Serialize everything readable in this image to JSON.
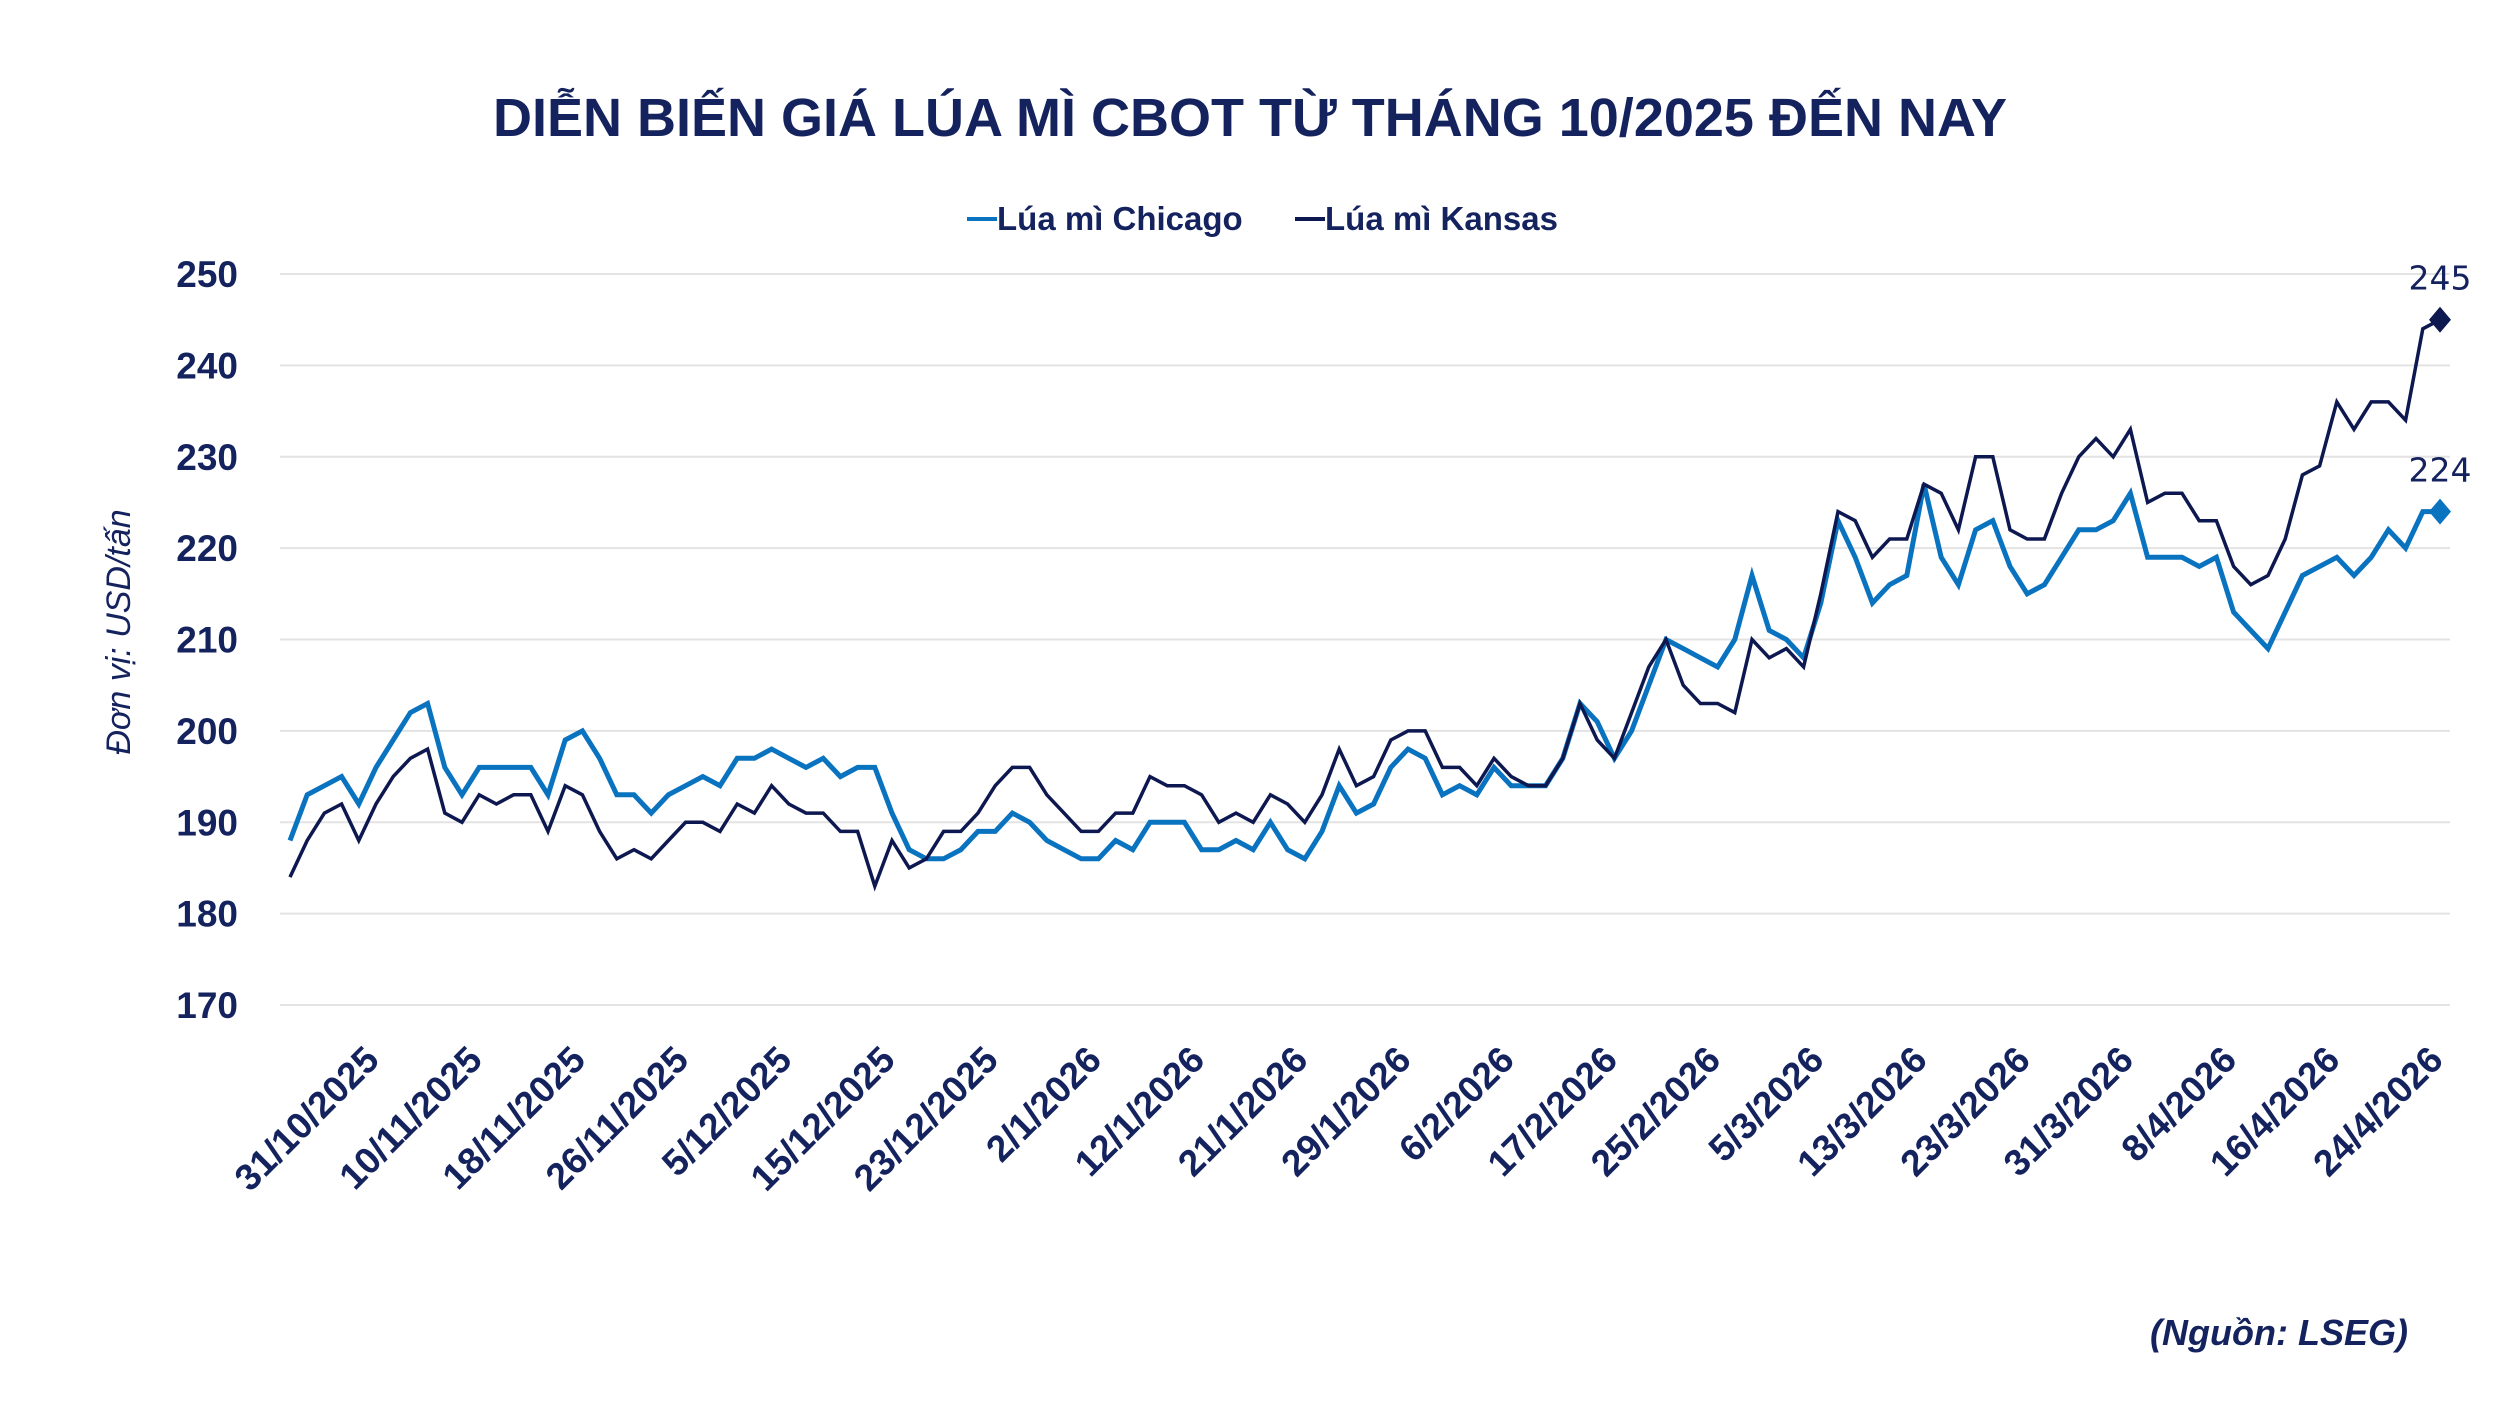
{
  "chart_data": {
    "type": "line",
    "title": "DIỄN BIẾN GIÁ LÚA MÌ CBOT TỪ THÁNG 10/2025 ĐẾN NAY",
    "ylabel": "Đơn vị: USD/tấn",
    "xlabel": "",
    "ylim": [
      170,
      250
    ],
    "yticks": [
      170,
      180,
      190,
      200,
      210,
      220,
      230,
      240,
      250
    ],
    "grid": true,
    "legend_position": "top",
    "xtick_labels": [
      "31/10/2025",
      "10/11/2025",
      "18/11/2025",
      "26/11/2025",
      "5/12/2025",
      "15/12/2025",
      "23/12/2025",
      "2/1/2026",
      "12/1/2026",
      "21/1/2026",
      "29/1/2026",
      "6/2/2026",
      "17/2/2026",
      "25/2/2026",
      "5/3/2026",
      "13/3/2026",
      "23/3/2026",
      "31/3/2026",
      "8/4/2026",
      "16/4/2026",
      "24/4/2026"
    ],
    "series": [
      {
        "name": "Lúa mì Chicago",
        "color": "#0a73c0",
        "last_label": "224",
        "values": [
          188,
          193,
          194,
          195,
          192,
          196,
          199,
          202,
          203,
          196,
          193,
          196,
          196,
          196,
          196,
          193,
          199,
          200,
          197,
          193,
          193,
          191,
          193,
          194,
          195,
          194,
          197,
          197,
          198,
          197,
          196,
          197,
          195,
          196,
          196,
          191,
          187,
          186,
          186,
          187,
          189,
          189,
          191,
          190,
          188,
          187,
          186,
          186,
          188,
          187,
          190,
          190,
          190,
          187,
          187,
          188,
          187,
          190,
          187,
          186,
          189,
          194,
          191,
          192,
          196,
          198,
          197,
          193,
          194,
          193,
          196,
          194,
          194,
          194,
          197,
          203,
          201,
          197,
          200,
          205,
          210,
          209,
          208,
          207,
          210,
          217,
          211,
          210,
          208,
          214,
          223,
          219,
          214,
          216,
          217,
          227,
          219,
          216,
          222,
          223,
          218,
          215,
          216,
          219,
          222,
          222,
          223,
          226,
          219,
          219,
          219,
          218,
          219,
          213,
          211,
          209,
          213,
          217,
          218,
          219,
          217,
          219,
          222,
          220,
          224,
          224
        ]
      },
      {
        "name": "Lúa mì Kansas",
        "color": "#0d1850",
        "last_label": "245",
        "values": [
          184,
          188,
          191,
          192,
          188,
          192,
          195,
          197,
          198,
          191,
          190,
          193,
          192,
          193,
          193,
          189,
          194,
          193,
          189,
          186,
          187,
          186,
          188,
          190,
          190,
          189,
          192,
          191,
          194,
          192,
          191,
          191,
          189,
          189,
          183,
          188,
          185,
          186,
          189,
          189,
          191,
          194,
          196,
          196,
          193,
          191,
          189,
          189,
          191,
          191,
          195,
          194,
          194,
          193,
          190,
          191,
          190,
          193,
          192,
          190,
          193,
          198,
          194,
          195,
          199,
          200,
          200,
          196,
          196,
          194,
          197,
          195,
          194,
          194,
          197,
          203,
          199,
          197,
          202,
          207,
          210,
          205,
          203,
          203,
          202,
          210,
          208,
          209,
          207,
          215,
          224,
          223,
          219,
          221,
          221,
          227,
          226,
          222,
          230,
          230,
          222,
          221,
          221,
          226,
          230,
          232,
          230,
          233,
          225,
          226,
          226,
          223,
          223,
          218,
          216,
          217,
          221,
          228,
          229,
          236,
          233,
          236,
          236,
          234,
          244,
          245
        ]
      }
    ]
  },
  "source": "(Nguồn: LSEG)"
}
